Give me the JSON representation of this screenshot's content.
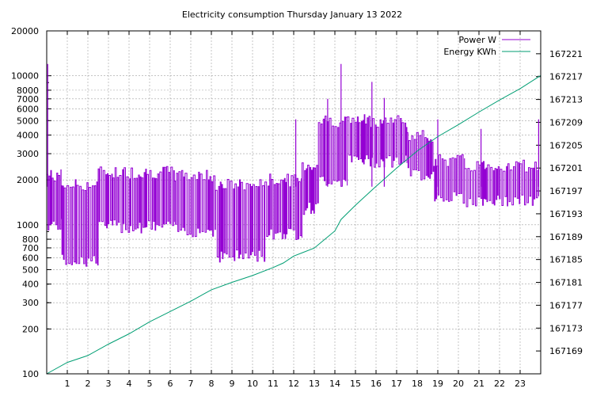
{
  "chart_data": {
    "type": "line",
    "title": "Electricity consumption Thursday January 13 2022",
    "x_axis": {
      "range": [
        0,
        24
      ],
      "ticks": [
        1,
        2,
        3,
        4,
        5,
        6,
        7,
        8,
        9,
        10,
        11,
        12,
        13,
        14,
        15,
        16,
        17,
        18,
        19,
        20,
        21,
        22,
        23
      ],
      "tick_labels": [
        "1",
        "2",
        "3",
        "4",
        "5",
        "6",
        "7",
        "8",
        "9",
        "10",
        "11",
        "12",
        "13",
        "14",
        "15",
        "16",
        "17",
        "18",
        "19",
        "20",
        "21",
        "22",
        "23"
      ]
    },
    "y_axis_left": {
      "scale": "log",
      "range": [
        100,
        20000
      ],
      "ticks": [
        100,
        200,
        300,
        400,
        500,
        600,
        700,
        800,
        1000,
        2000,
        3000,
        4000,
        5000,
        6000,
        7000,
        8000,
        10000,
        20000
      ],
      "tick_labels": [
        "100",
        "200",
        "300",
        "400",
        "500",
        "600",
        "700",
        "800",
        "1000",
        "2000",
        "3000",
        "4000",
        "5000",
        "6000",
        "7000",
        "8000",
        "10000",
        "20000"
      ]
    },
    "y_axis_right": {
      "scale": "linear",
      "range": [
        167165,
        167225
      ],
      "ticks": [
        167169,
        167173,
        167177,
        167181,
        167185,
        167189,
        167193,
        167197,
        167201,
        167205,
        167209,
        167213,
        167217,
        167221
      ],
      "tick_labels": [
        "167169",
        "167173",
        "167177",
        "167181",
        "167185",
        "167189",
        "167193",
        "167197",
        "167201",
        "167205",
        "167209",
        "167213",
        "167217",
        "167221"
      ]
    },
    "grid": true,
    "legend_position": "top-right",
    "series": [
      {
        "name": "Power W",
        "axis": "left",
        "color": "#9400d3",
        "pattern": "square-wave cycling between a high level and a low level",
        "segments": [
          {
            "x_range": [
              0.0,
              0.7
            ],
            "high": 2150,
            "low": 1000
          },
          {
            "x_range": [
              0.7,
              2.5
            ],
            "high": 1850,
            "low": 580
          },
          {
            "x_range": [
              2.5,
              6.2
            ],
            "high": 2250,
            "low": 980
          },
          {
            "x_range": [
              6.2,
              8.2
            ],
            "high": 2150,
            "low": 920
          },
          {
            "x_range": [
              8.2,
              10.6
            ],
            "high": 1850,
            "low": 620
          },
          {
            "x_range": [
              10.6,
              12.4
            ],
            "high": 2000,
            "low": 880
          },
          {
            "x_range": [
              12.4,
              13.2
            ],
            "high": 2500,
            "low": 1300
          },
          {
            "x_range": [
              13.2,
              14.6
            ],
            "high": 5000,
            "low": 2000
          },
          {
            "x_range": [
              14.6,
              17.5
            ],
            "high": 5000,
            "low": 2700
          },
          {
            "x_range": [
              17.5,
              18.8
            ],
            "high": 3900,
            "low": 2200
          },
          {
            "x_range": [
              18.8,
              20.3
            ],
            "high": 2700,
            "low": 1550
          },
          {
            "x_range": [
              20.3,
              23.9
            ],
            "high": 2500,
            "low": 1450
          }
        ],
        "spikes": [
          {
            "x": 0.05,
            "y": 12000
          },
          {
            "x": 12.1,
            "y": 5100
          },
          {
            "x": 13.65,
            "y": 7000
          },
          {
            "x": 14.3,
            "y": 12000
          },
          {
            "x": 15.8,
            "y": 9100
          },
          {
            "x": 16.4,
            "y": 7100
          },
          {
            "x": 19.0,
            "y": 5100
          },
          {
            "x": 21.1,
            "y": 4400
          },
          {
            "x": 23.9,
            "y": 5100
          }
        ]
      },
      {
        "name": "Energy KWh",
        "axis": "right",
        "color": "#009e73",
        "x": [
          0,
          1,
          2,
          3,
          4,
          5,
          6,
          7,
          8,
          9,
          10,
          11,
          11.5,
          12,
          13,
          13.5,
          14,
          14.3,
          15,
          16,
          17,
          18,
          19,
          20,
          21,
          22,
          23,
          24
        ],
        "y": [
          167165,
          167167,
          167168.2,
          167170.2,
          167172,
          167174.1,
          167175.9,
          167177.7,
          167179.7,
          167181,
          167182.2,
          167183.6,
          167184.4,
          167185.6,
          167187,
          167188.5,
          167190,
          167192,
          167194.5,
          167197.8,
          167201,
          167204,
          167206.5,
          167208.6,
          167210.8,
          167212.9,
          167214.9,
          167217.2
        ]
      }
    ]
  }
}
